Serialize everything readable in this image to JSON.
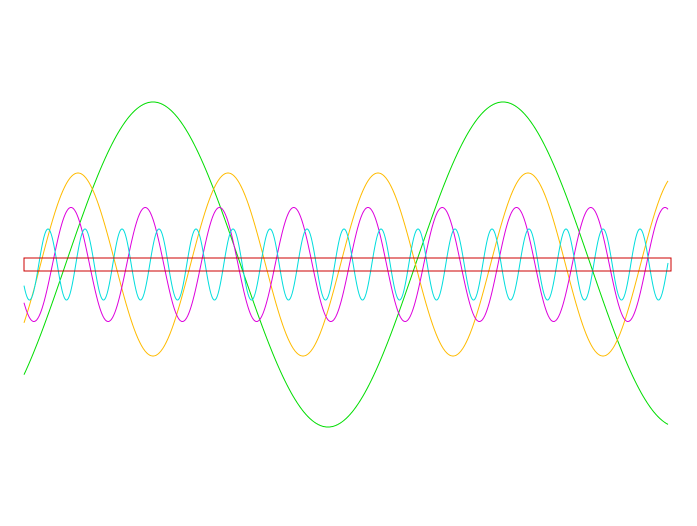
{
  "chart_data": {
    "type": "wave",
    "xlim": [
      0,
      697
    ],
    "ylim": [
      -261.5,
      264.5
    ],
    "x_range": [
      24,
      668
    ],
    "series": [
      {
        "color": "#00dd00",
        "amplitude": 162.5,
        "period": 350,
        "peak_x": 153
      },
      {
        "color": "#ffbb00",
        "amplitude": 91.5,
        "period": 150,
        "peak_x": 78
      },
      {
        "color": "#dd00dd",
        "amplitude": 57,
        "period": 74.25,
        "peak_x": 71
      },
      {
        "color": "#00dddd",
        "amplitude": 35.5,
        "period": 37,
        "peak_x": 48
      }
    ],
    "band": {
      "x": [
        24,
        671
      ],
      "y": [
        -6.5,
        6.5
      ],
      "color": "#cc0000"
    }
  }
}
